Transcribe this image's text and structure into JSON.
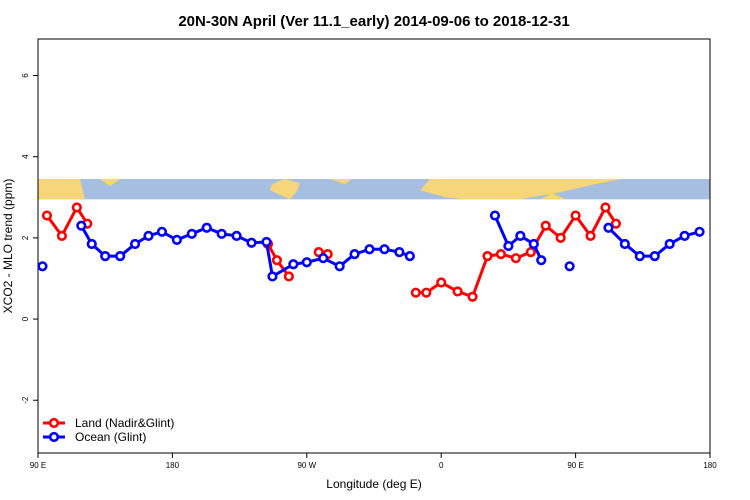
{
  "chart_data": {
    "type": "line",
    "title": "20N-30N April (Ver 11.1_early)   2014-09-06 to 2018-12-31",
    "xlabel": "Longitude (deg E)",
    "ylabel": "XCO2 - MLO trend (ppm)",
    "xlim": [
      90,
      540
    ],
    "ylim": [
      -3.3,
      6.9
    ],
    "x_ticks": [
      {
        "value": 90,
        "label": "90 E"
      },
      {
        "value": 180,
        "label": "180"
      },
      {
        "value": 270,
        "label": "90 W"
      },
      {
        "value": 360,
        "label": "0"
      },
      {
        "value": 450,
        "label": "90 E"
      },
      {
        "value": 540,
        "label": "180"
      }
    ],
    "y_ticks": [
      {
        "value": -2,
        "label": "-2"
      },
      {
        "value": 0,
        "label": "0"
      },
      {
        "value": 2,
        "label": "2"
      },
      {
        "value": 4,
        "label": "4"
      },
      {
        "value": 6,
        "label": "6"
      }
    ],
    "legend_position": "bottom-left",
    "map_strip": {
      "ymin": 2.95,
      "ymax": 3.45,
      "ocean_color": "#a6bedf",
      "land_color": "#f7d57a"
    },
    "series": [
      {
        "name": "Land (Nadir&Glint)",
        "color": "#ff0000",
        "segments": [
          [
            [
              96,
              2.55
            ],
            [
              106,
              2.05
            ],
            [
              116,
              2.75
            ],
            [
              123,
              2.35
            ]
          ],
          [
            [
              244,
              1.85
            ],
            [
              250,
              1.45
            ],
            [
              258,
              1.05
            ]
          ],
          [
            [
              278,
              1.65
            ],
            [
              284,
              1.6
            ]
          ],
          [
            [
              343,
              0.65
            ],
            [
              350,
              0.65
            ],
            [
              360,
              0.9
            ],
            [
              371,
              0.68
            ],
            [
              381,
              0.55
            ],
            [
              391,
              1.55
            ],
            [
              400,
              1.6
            ],
            [
              410,
              1.5
            ],
            [
              420,
              1.65
            ],
            [
              430,
              2.3
            ],
            [
              440,
              2.0
            ],
            [
              450,
              2.55
            ],
            [
              460,
              2.05
            ],
            [
              470,
              2.75
            ],
            [
              477,
              2.35
            ]
          ]
        ]
      },
      {
        "name": "Ocean (Glint)",
        "color": "#0000ff",
        "segments": [
          [
            [
              93,
              1.3
            ]
          ],
          [
            [
              119,
              2.3
            ],
            [
              126,
              1.85
            ],
            [
              135,
              1.55
            ],
            [
              145,
              1.55
            ],
            [
              155,
              1.85
            ],
            [
              164,
              2.05
            ],
            [
              173,
              2.15
            ],
            [
              183,
              1.95
            ],
            [
              193,
              2.1
            ],
            [
              203,
              2.25
            ],
            [
              213,
              2.1
            ],
            [
              223,
              2.05
            ],
            [
              233,
              1.88
            ],
            [
              243,
              1.9
            ],
            [
              247,
              1.05
            ],
            [
              261,
              1.35
            ],
            [
              270,
              1.4
            ],
            [
              281,
              1.5
            ],
            [
              292,
              1.3
            ],
            [
              302,
              1.6
            ],
            [
              312,
              1.72
            ],
            [
              322,
              1.72
            ],
            [
              332,
              1.65
            ],
            [
              339,
              1.55
            ]
          ],
          [
            [
              396,
              2.55
            ],
            [
              405,
              1.8
            ],
            [
              413,
              2.05
            ],
            [
              422,
              1.85
            ],
            [
              427,
              1.45
            ]
          ],
          [
            [
              446,
              1.3
            ]
          ],
          [
            [
              472,
              2.25
            ],
            [
              483,
              1.85
            ],
            [
              493,
              1.55
            ],
            [
              503,
              1.55
            ],
            [
              513,
              1.85
            ],
            [
              523,
              2.05
            ],
            [
              533,
              2.15
            ]
          ]
        ]
      }
    ]
  }
}
